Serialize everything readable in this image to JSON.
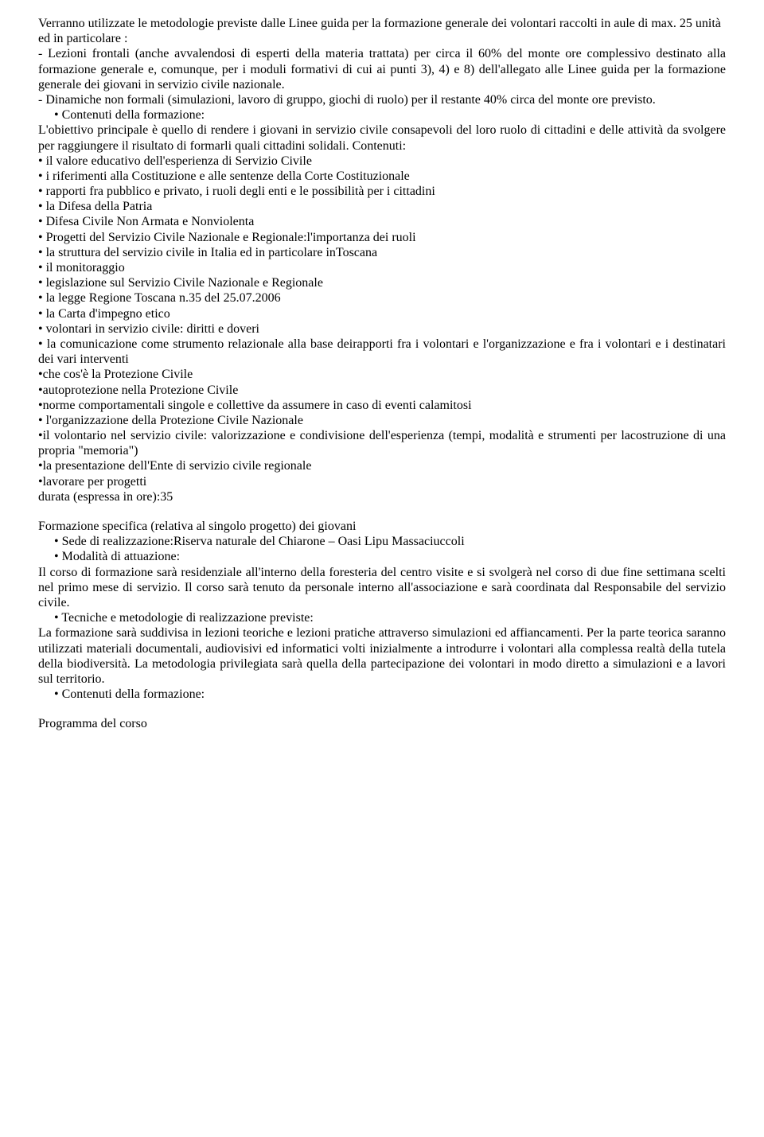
{
  "p1": "Verranno utilizzate le metodologie previste dalle Linee guida per la formazione generale dei volontari raccolti in aule di max. 25 unità",
  "p2": "ed in particolare :",
  "p3": "- Lezioni frontali (anche avvalendosi di esperti della materia trattata) per circa il 60% del monte ore complessivo destinato alla formazione generale e, comunque, per i moduli formativi di cui ai punti 3), 4) e 8) dell'allegato alle Linee guida per la formazione generale dei giovani in servizio civile nazionale.",
  "p4": "- Dinamiche non formali (simulazioni, lavoro di gruppo, giochi di ruolo) per il restante 40% circa del monte ore previsto.",
  "b1": "Contenuti della formazione:",
  "p5": "L'obiettivo principale è quello di rendere i giovani in servizio civile consapevoli del loro ruolo di cittadini e delle attività da svolgere per raggiungere il risultato di formarli quali cittadini solidali. Contenuti:",
  "l1": "• il valore educativo dell'esperienza di Servizio Civile",
  "l2": "• i riferimenti alla Costituzione e alle sentenze della Corte Costituzionale",
  "l3": "• rapporti fra pubblico e privato, i ruoli degli enti e le possibilità per i cittadini",
  "l4": "• la Difesa della Patria",
  "l5": "• Difesa Civile Non Armata e Nonviolenta",
  "l6": "• Progetti del Servizio Civile Nazionale e Regionale:l'importanza dei ruoli",
  "l7": "• la struttura del servizio civile in Italia ed in particolare inToscana",
  "l8": "• il monitoraggio",
  "l9": "• legislazione sul Servizio Civile Nazionale e Regionale",
  "l10": "• la legge Regione Toscana n.35 del 25.07.2006",
  "l11": "• la Carta d'impegno etico",
  "l12": "• volontari in servizio civile: diritti e doveri",
  "l13": "• la comunicazione come strumento relazionale alla base deirapporti fra i volontari e l'organizzazione e fra i volontari e i destinatari dei vari interventi",
  "l14": "•che cos'è la Protezione Civile",
  "l15": "•autoprotezione nella Protezione Civile",
  "l16": "•norme comportamentali singole e collettive da assumere in caso di eventi calamitosi",
  "l17": "• l'organizzazione della Protezione Civile Nazionale",
  "l18": "•il volontario nel servizio civile: valorizzazione e condivisione dell'esperienza (tempi, modalità e strumenti per lacostruzione di una propria \"memoria\")",
  "l19": "•la presentazione dell'Ente di servizio civile regionale",
  "l20": "•lavorare per progetti",
  "p6": "durata (espressa in ore):35",
  "p7": "Formazione specifica (relativa al singolo progetto) dei giovani",
  "b2": "Sede di realizzazione:Riserva naturale del Chiarone – Oasi Lipu Massaciuccoli",
  "b3": "Modalità di attuazione:",
  "p8": "Il corso di formazione sarà residenziale all'interno della foresteria del centro visite e si svolgerà nel corso di due fine settimana scelti nel primo mese di servizio. Il corso sarà tenuto da personale interno all'associazione e sarà coordinata dal Responsabile del servizio civile.",
  "b4": "Tecniche e metodologie di realizzazione previste:",
  "p9": "La formazione sarà suddivisa in lezioni teoriche e lezioni pratiche attraverso simulazioni ed affiancamenti. Per la parte teorica saranno utilizzati materiali documentali, audiovisivi ed informatici volti inizialmente a introdurre i volontari alla complessa realtà della tutela della biodiversità. La metodologia privilegiata sarà quella della partecipazione dei volontari in modo diretto a simulazioni e a lavori sul territorio.",
  "b5": "Contenuti della formazione:",
  "p10": "Programma del corso"
}
